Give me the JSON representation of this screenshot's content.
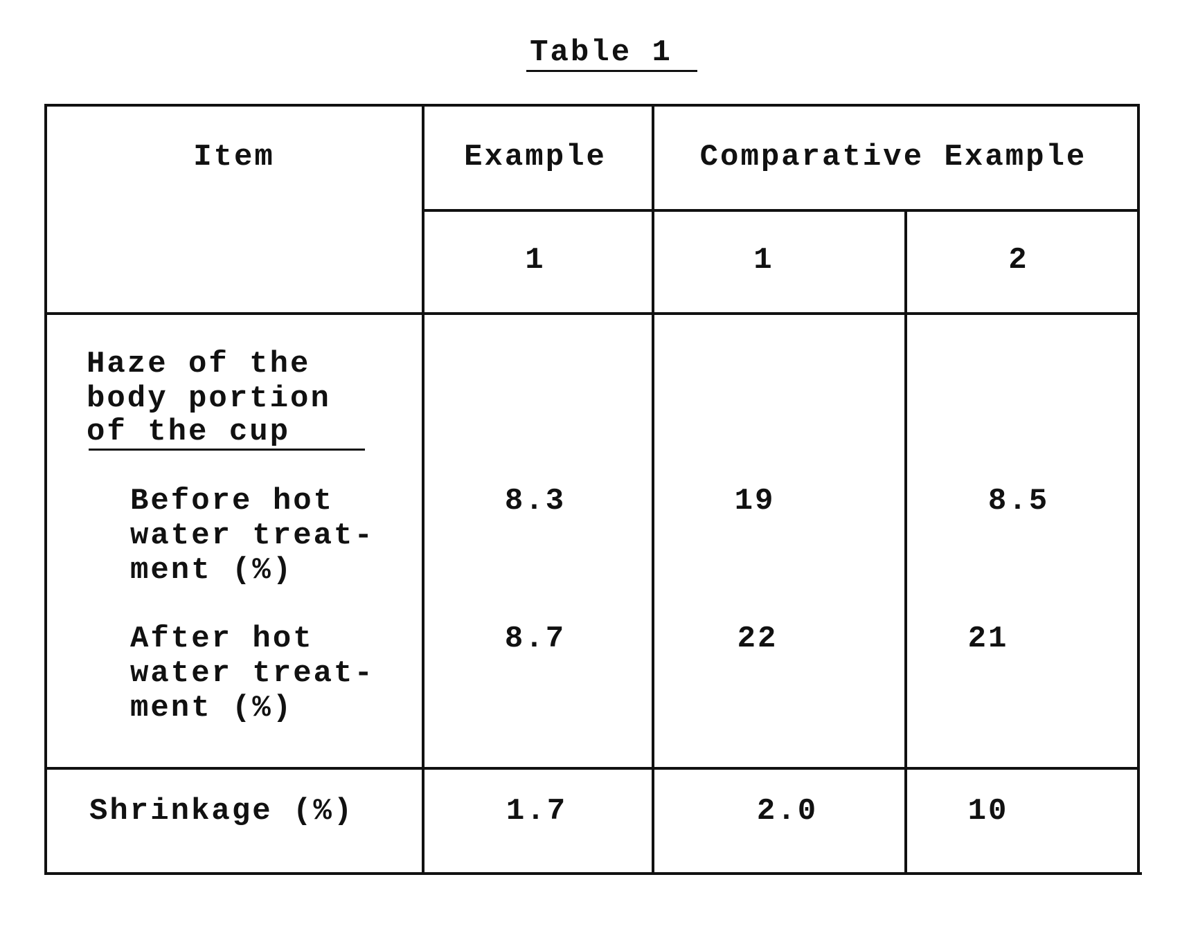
{
  "title": "Table 1",
  "table": {
    "headers": {
      "item": "Item",
      "example": "Example",
      "comparative": "Comparative Example",
      "sub": [
        "1",
        "1",
        "2"
      ]
    },
    "group_label": [
      "Haze of the",
      "body portion",
      "of the cup"
    ],
    "rows": [
      {
        "label": [
          "Before hot",
          "water treat-",
          "ment (%)"
        ],
        "values": [
          "8.3",
          "19",
          "8.5"
        ]
      },
      {
        "label": [
          "After hot",
          "water treat-",
          "ment (%)"
        ],
        "values": [
          "8.7",
          "22",
          "21"
        ]
      },
      {
        "label": [
          "Shrinkage (%)"
        ],
        "values": [
          "1.7",
          "2.0",
          "10"
        ]
      }
    ]
  }
}
